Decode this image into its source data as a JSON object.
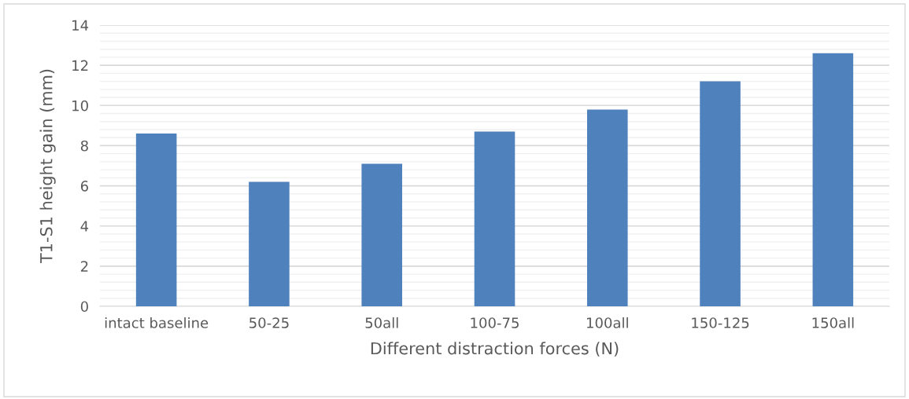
{
  "chart_data": {
    "type": "bar",
    "xlabel": "Different distraction forces (N)",
    "ylabel": "T1-S1 height gain (mm)",
    "categories": [
      "intact baseline",
      "50-25",
      "50all",
      "100-75",
      "100all",
      "150-125",
      "150all"
    ],
    "values": [
      8.6,
      6.2,
      7.1,
      8.7,
      9.8,
      11.2,
      12.6
    ],
    "color": "#4f81bd",
    "ylim": [
      0,
      14
    ],
    "yticks": [
      0,
      2,
      4,
      6,
      8,
      10,
      12,
      14
    ],
    "grid": "y"
  }
}
